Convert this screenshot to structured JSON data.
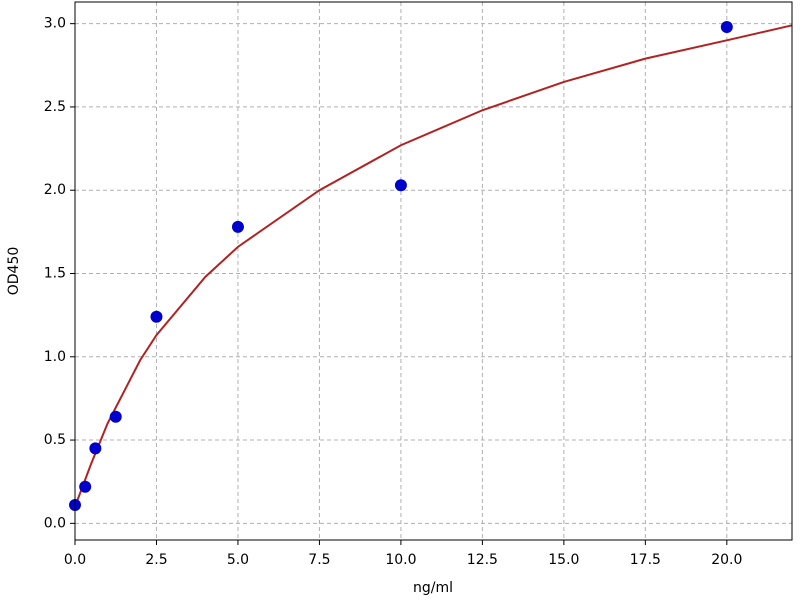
{
  "chart_data": {
    "type": "scatter",
    "xlabel": "ng/ml",
    "ylabel": "OD450",
    "xlim": [
      0,
      22
    ],
    "ylim": [
      -0.1,
      3.13
    ],
    "xticks": [
      {
        "value": 0,
        "label": "0.0"
      },
      2.5,
      {
        "value": 5,
        "label": "5.0"
      },
      7.5,
      {
        "value": 10,
        "label": "10.0"
      },
      12.5,
      {
        "value": 15,
        "label": "15.0"
      },
      17.5,
      {
        "value": 20,
        "label": "20.0"
      }
    ],
    "yticks": [
      {
        "value": 0,
        "label": "0.0"
      },
      0.5,
      {
        "value": 1,
        "label": "1.0"
      },
      1.5,
      {
        "value": 2,
        "label": "2.0"
      },
      2.5,
      {
        "value": 3,
        "label": "3.0"
      }
    ],
    "grid": true,
    "series": [
      {
        "type": "line",
        "color": "#b22222",
        "x": [
          0,
          0.5,
          1,
          2,
          2.5,
          4,
          5,
          7.5,
          10,
          12.5,
          15,
          17.5,
          20,
          22
        ],
        "values": [
          0.1,
          0.36,
          0.6,
          0.98,
          1.13,
          1.48,
          1.66,
          2.0,
          2.27,
          2.48,
          2.65,
          2.79,
          2.9,
          2.99
        ]
      },
      {
        "type": "scatter",
        "color": "#0000cc",
        "x": [
          0,
          0.3125,
          0.625,
          1.25,
          2.5,
          5,
          10,
          20
        ],
        "values": [
          0.11,
          0.22,
          0.45,
          0.64,
          1.24,
          1.78,
          2.03,
          2.98
        ]
      }
    ]
  }
}
